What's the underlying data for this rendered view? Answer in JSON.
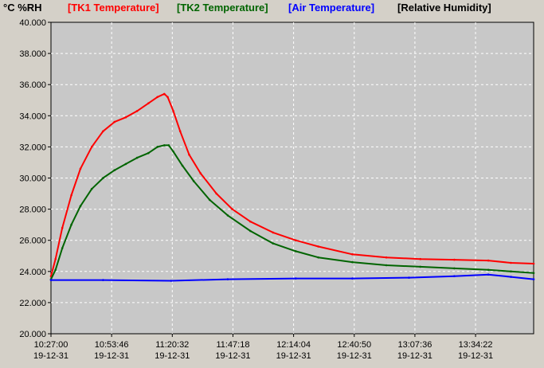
{
  "chart_data": {
    "type": "line",
    "units_label": "°C %RH",
    "legend": [
      {
        "label": "[TK1 Temperature]",
        "color": "#ff0000"
      },
      {
        "label": "[TK2 Temperature]",
        "color": "#006400"
      },
      {
        "label": "[Air Temperature]",
        "color": "#0000ff"
      },
      {
        "label": "[Relative Humidity]",
        "color": "#000000"
      }
    ],
    "y_ticks": [
      "20.000",
      "22.000",
      "24.000",
      "26.000",
      "28.000",
      "30.000",
      "32.000",
      "34.000",
      "36.000",
      "38.000",
      "40.000"
    ],
    "ylim": [
      20,
      40
    ],
    "x_ticks": [
      {
        "time": "10:27:00",
        "date": "19-12-31"
      },
      {
        "time": "10:53:46",
        "date": "19-12-31"
      },
      {
        "time": "11:20:32",
        "date": "19-12-31"
      },
      {
        "time": "11:47:18",
        "date": "19-12-31"
      },
      {
        "time": "12:14:04",
        "date": "19-12-31"
      },
      {
        "time": "12:40:50",
        "date": "19-12-31"
      },
      {
        "time": "13:07:36",
        "date": "19-12-31"
      },
      {
        "time": "13:34:22",
        "date": "19-12-31"
      }
    ],
    "xlim": [
      "10:27:00",
      "14:00:00"
    ],
    "grid": true,
    "series": [
      {
        "name": "[TK1 Temperature]",
        "color": "#ff0000",
        "x": [
          "10:27:00",
          "10:29:00",
          "10:32:00",
          "10:36:00",
          "10:40:00",
          "10:45:00",
          "10:50:00",
          "10:55:00",
          "11:00:00",
          "11:05:00",
          "11:10:00",
          "11:14:00",
          "11:17:00",
          "11:18:30",
          "11:21:00",
          "11:24:00",
          "11:28:00",
          "11:33:00",
          "11:40:00",
          "11:47:00",
          "11:55:00",
          "12:05:00",
          "12:15:00",
          "12:25:00",
          "12:40:00",
          "12:55:00",
          "13:10:00",
          "13:25:00",
          "13:40:00",
          "13:50:00",
          "14:00:00"
        ],
        "y": [
          23.7,
          24.8,
          26.8,
          28.9,
          30.6,
          32.0,
          33.0,
          33.6,
          33.9,
          34.3,
          34.8,
          35.2,
          35.4,
          35.2,
          34.3,
          33.0,
          31.5,
          30.3,
          29.0,
          28.0,
          27.2,
          26.5,
          26.0,
          25.6,
          25.1,
          24.9,
          24.8,
          24.75,
          24.7,
          24.55,
          24.5
        ]
      },
      {
        "name": "[TK2 Temperature]",
        "color": "#006400",
        "x": [
          "10:27:00",
          "10:29:00",
          "10:32:00",
          "10:36:00",
          "10:40:00",
          "10:45:00",
          "10:50:00",
          "10:55:00",
          "11:00:00",
          "11:05:00",
          "11:10:00",
          "11:14:00",
          "11:17:00",
          "11:19:00",
          "11:21:00",
          "11:25:00",
          "11:30:00",
          "11:37:00",
          "11:45:00",
          "11:55:00",
          "12:05:00",
          "12:15:00",
          "12:25:00",
          "12:40:00",
          "12:55:00",
          "13:10:00",
          "13:25:00",
          "13:40:00",
          "13:50:00",
          "14:00:00"
        ],
        "y": [
          23.5,
          24.1,
          25.5,
          27.0,
          28.2,
          29.3,
          30.0,
          30.5,
          30.9,
          31.3,
          31.6,
          32.0,
          32.1,
          32.1,
          31.7,
          30.8,
          29.8,
          28.6,
          27.6,
          26.6,
          25.8,
          25.3,
          24.9,
          24.6,
          24.4,
          24.3,
          24.2,
          24.1,
          24.0,
          23.9
        ]
      },
      {
        "name": "[Air Temperature]",
        "color": "#0000ff",
        "x": [
          "10:27:00",
          "10:50:00",
          "11:20:00",
          "11:45:00",
          "12:15:00",
          "12:40:00",
          "13:05:00",
          "13:25:00",
          "13:40:00",
          "13:50:00",
          "14:00:00"
        ],
        "y": [
          23.45,
          23.45,
          23.4,
          23.5,
          23.55,
          23.55,
          23.6,
          23.7,
          23.8,
          23.65,
          23.5
        ]
      }
    ]
  }
}
